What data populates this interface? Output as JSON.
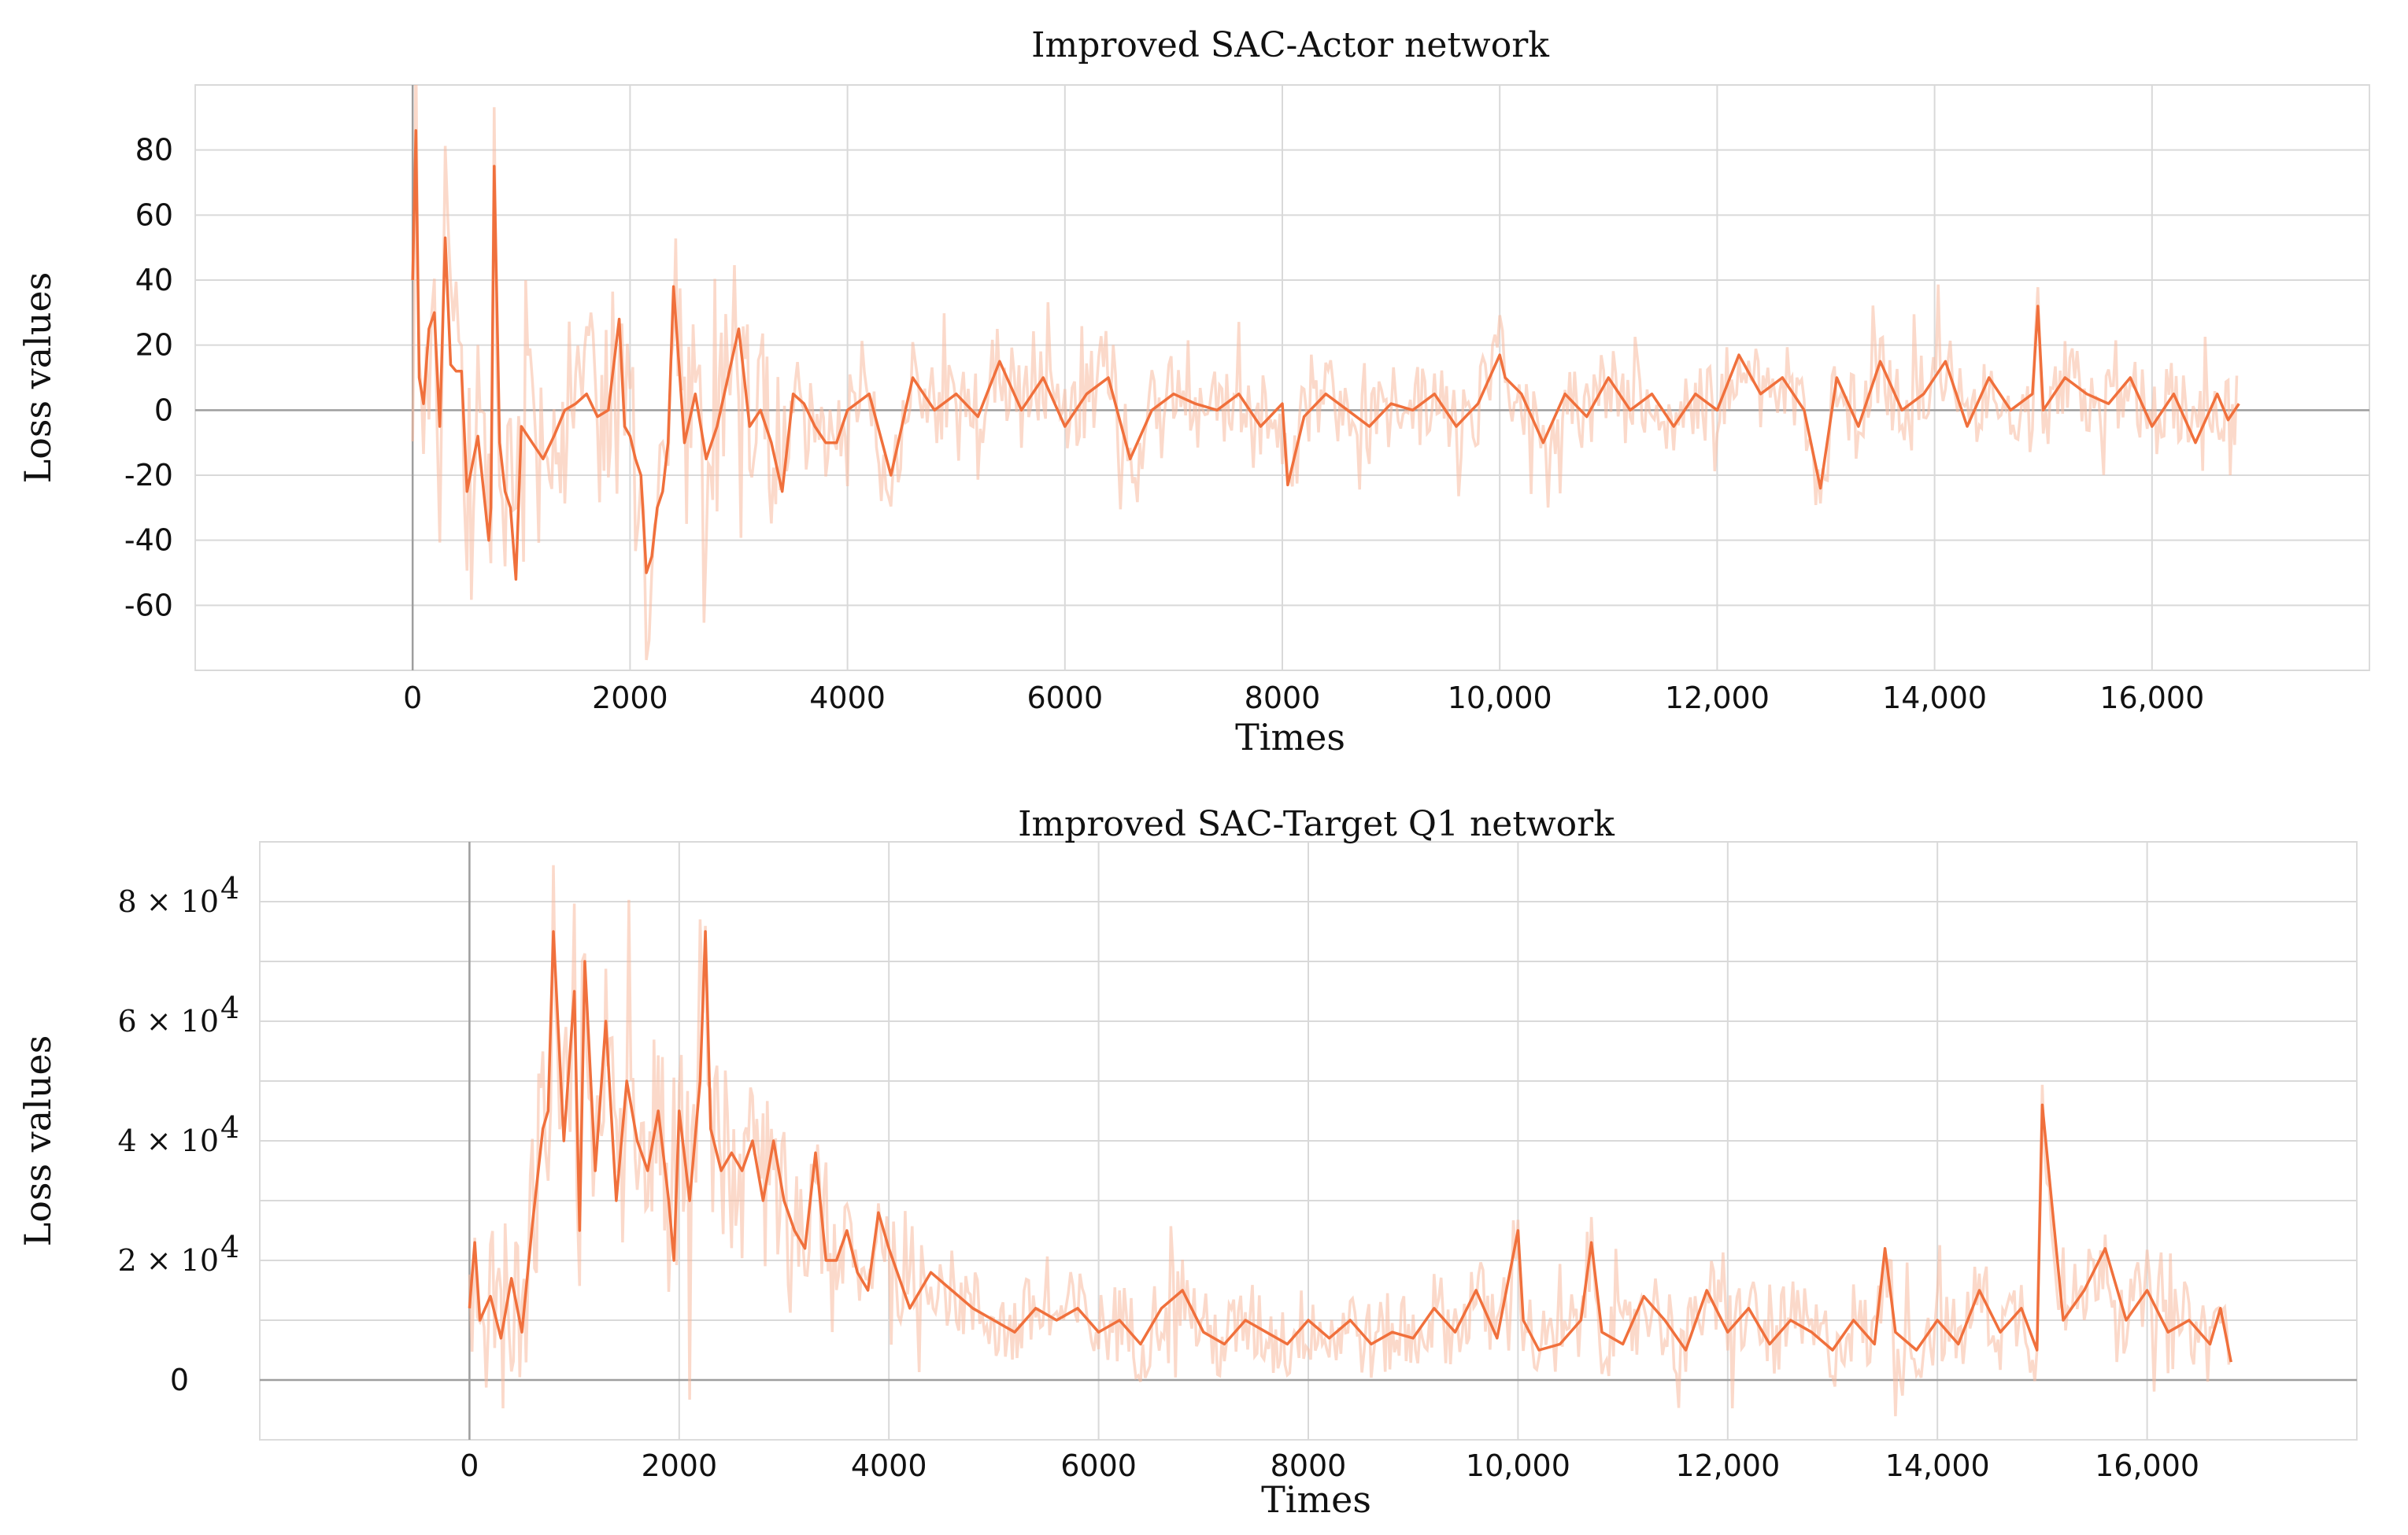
{
  "chart_data": [
    {
      "type": "line",
      "title": "Improved SAC-Actor network",
      "xlabel": "Times",
      "ylabel": "Loss values",
      "xlim": [
        -2000,
        18000
      ],
      "ylim": [
        -80,
        100
      ],
      "x_ticks": [
        0,
        2000,
        4000,
        6000,
        8000,
        10000,
        12000,
        14000,
        16000
      ],
      "x_tick_labels": [
        "0",
        "2000",
        "4000",
        "6000",
        "8000",
        "10,000",
        "12,000",
        "14,000",
        "16,000"
      ],
      "y_ticks": [
        -60,
        -40,
        -20,
        0,
        20,
        40,
        60,
        80
      ],
      "y_tick_labels": [
        "-60",
        "-40",
        "-20",
        "0",
        "20",
        "40",
        "60",
        "80"
      ],
      "grid": true,
      "series": [
        {
          "name": "smoothed",
          "color": "#f0703c",
          "x": [
            0,
            30,
            60,
            100,
            150,
            200,
            250,
            300,
            350,
            400,
            450,
            500,
            600,
            700,
            720,
            750,
            800,
            850,
            900,
            950,
            1000,
            1100,
            1200,
            1300,
            1400,
            1500,
            1600,
            1700,
            1800,
            1900,
            1950,
            2000,
            2050,
            2100,
            2150,
            2200,
            2250,
            2300,
            2350,
            2400,
            2500,
            2600,
            2700,
            2800,
            2900,
            3000,
            3100,
            3200,
            3300,
            3400,
            3500,
            3600,
            3700,
            3800,
            3900,
            4000,
            4200,
            4400,
            4600,
            4800,
            5000,
            5200,
            5400,
            5600,
            5800,
            6000,
            6200,
            6400,
            6600,
            6800,
            7000,
            7200,
            7400,
            7600,
            7800,
            8000,
            8050,
            8200,
            8400,
            8600,
            8800,
            9000,
            9200,
            9400,
            9600,
            9800,
            10000,
            10050,
            10200,
            10400,
            10600,
            10800,
            11000,
            11200,
            11400,
            11600,
            11800,
            12000,
            12200,
            12400,
            12600,
            12800,
            12950,
            13100,
            13300,
            13500,
            13700,
            13900,
            14100,
            14300,
            14500,
            14700,
            14900,
            14950,
            15000,
            15200,
            15400,
            15600,
            15800,
            16000,
            16200,
            16400,
            16600,
            16700,
            16800
          ],
          "y": [
            40,
            86,
            10,
            2,
            25,
            30,
            -5,
            53,
            14,
            12,
            12,
            -25,
            -8,
            -40,
            -30,
            75,
            -10,
            -25,
            -30,
            -52,
            -5,
            -10,
            -15,
            -8,
            0,
            2,
            5,
            -2,
            0,
            28,
            -5,
            -8,
            -15,
            -20,
            -50,
            -45,
            -30,
            -25,
            -10,
            38,
            -10,
            5,
            -15,
            -5,
            10,
            25,
            -5,
            0,
            -10,
            -25,
            5,
            2,
            -5,
            -10,
            -10,
            0,
            5,
            -20,
            10,
            0,
            5,
            -2,
            15,
            0,
            10,
            -5,
            5,
            10,
            -15,
            0,
            5,
            2,
            0,
            5,
            -5,
            2,
            -23,
            -2,
            5,
            0,
            -5,
            2,
            0,
            5,
            -5,
            2,
            17,
            10,
            5,
            -10,
            5,
            -2,
            10,
            0,
            5,
            -5,
            5,
            0,
            17,
            5,
            10,
            0,
            -24,
            10,
            -5,
            15,
            0,
            5,
            15,
            -5,
            10,
            0,
            5,
            32,
            0,
            10,
            5,
            2,
            10,
            -5,
            5,
            -10,
            5,
            -3,
            2
          ]
        }
      ]
    },
    {
      "type": "line",
      "title": "Improved SAC-Target Q1 network",
      "xlabel": "Times",
      "ylabel": "Loss values",
      "xlim": [
        -2000,
        18000
      ],
      "ylim": [
        -10000,
        90000
      ],
      "x_ticks": [
        0,
        2000,
        4000,
        6000,
        8000,
        10000,
        12000,
        14000,
        16000
      ],
      "x_tick_labels": [
        "0",
        "2000",
        "4000",
        "6000",
        "8000",
        "10,000",
        "12,000",
        "14,000",
        "16,000"
      ],
      "y_ticks": [
        0,
        20000,
        40000,
        60000,
        80000
      ],
      "y_tick_labels": [
        "0",
        "2 × 10",
        "4 × 10",
        "6 × 10",
        "8 × 10"
      ],
      "y_tick_exponent": "4",
      "grid": true,
      "series": [
        {
          "name": "smoothed",
          "color": "#f0703c",
          "x": [
            0,
            50,
            100,
            200,
            300,
            400,
            500,
            600,
            700,
            750,
            800,
            900,
            1000,
            1050,
            1100,
            1200,
            1300,
            1400,
            1500,
            1600,
            1700,
            1800,
            1900,
            1950,
            2000,
            2100,
            2200,
            2250,
            2300,
            2400,
            2500,
            2600,
            2700,
            2800,
            2900,
            3000,
            3100,
            3200,
            3300,
            3400,
            3500,
            3600,
            3700,
            3800,
            3900,
            4000,
            4200,
            4400,
            4600,
            4800,
            5000,
            5200,
            5400,
            5600,
            5800,
            6000,
            6200,
            6400,
            6600,
            6800,
            7000,
            7200,
            7400,
            7600,
            7800,
            8000,
            8200,
            8400,
            8600,
            8800,
            9000,
            9200,
            9400,
            9600,
            9800,
            10000,
            10050,
            10200,
            10400,
            10600,
            10700,
            10800,
            11000,
            11200,
            11400,
            11600,
            11800,
            12000,
            12200,
            12400,
            12600,
            12800,
            13000,
            13200,
            13400,
            13500,
            13600,
            13800,
            14000,
            14200,
            14400,
            14600,
            14800,
            14950,
            15000,
            15200,
            15400,
            15600,
            15800,
            16000,
            16200,
            16400,
            16600,
            16700,
            16800
          ],
          "y": [
            12000,
            23000,
            10000,
            14000,
            7000,
            17000,
            8000,
            26000,
            42000,
            45000,
            75000,
            40000,
            65000,
            25000,
            70000,
            35000,
            60000,
            30000,
            50000,
            40000,
            35000,
            45000,
            30000,
            20000,
            45000,
            30000,
            50000,
            75000,
            42000,
            35000,
            38000,
            35000,
            40000,
            30000,
            40000,
            30000,
            25000,
            22000,
            38000,
            20000,
            20000,
            25000,
            18000,
            15000,
            28000,
            22000,
            12000,
            18000,
            15000,
            12000,
            10000,
            8000,
            12000,
            10000,
            12000,
            8000,
            10000,
            6000,
            12000,
            15000,
            8000,
            6000,
            10000,
            8000,
            6000,
            10000,
            7000,
            10000,
            6000,
            8000,
            7000,
            12000,
            8000,
            15000,
            7000,
            25000,
            10000,
            5000,
            6000,
            10000,
            23000,
            8000,
            6000,
            14000,
            10000,
            5000,
            15000,
            8000,
            12000,
            6000,
            10000,
            8000,
            5000,
            10000,
            6000,
            22000,
            8000,
            5000,
            10000,
            6000,
            15000,
            8000,
            12000,
            5000,
            46000,
            10000,
            15000,
            22000,
            10000,
            15000,
            8000,
            10000,
            6000,
            12000,
            3000
          ]
        }
      ]
    }
  ]
}
